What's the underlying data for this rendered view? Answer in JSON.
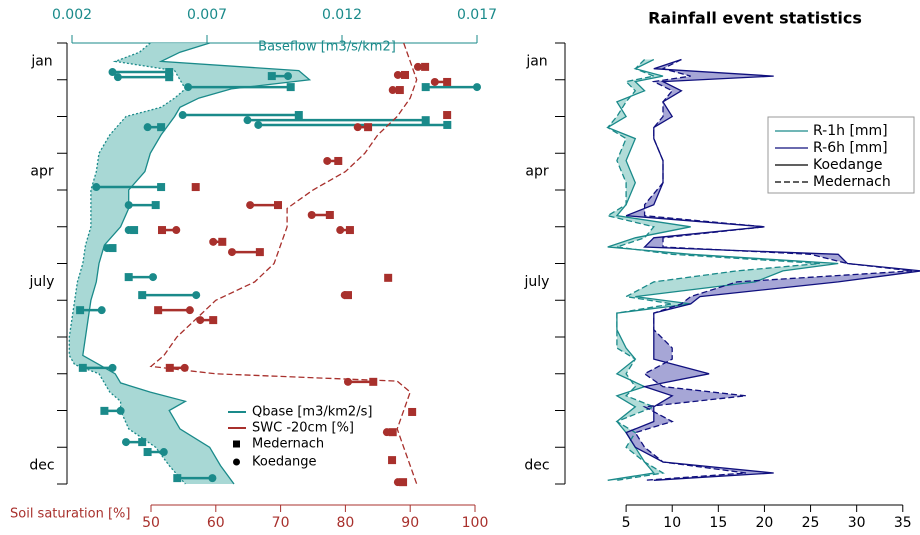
{
  "chart_data": [
    {
      "type": "line",
      "x_label": "Soil saturation [%]",
      "xlim": [
        50,
        100
      ],
      "xticks": [
        50,
        60,
        70,
        80,
        90,
        100
      ],
      "x2_label": "Baseflow [m3/s/km2]",
      "x2lim": [
        0.002,
        0.017
      ],
      "x2ticks": [
        0.002,
        0.007,
        0.012,
        0.017
      ],
      "ylim": [
        0,
        12
      ],
      "yticks": [
        {
          "value": 0.5,
          "label": "jan"
        },
        {
          "value": 3.5,
          "label": "apr"
        },
        {
          "value": 6.5,
          "label": "july"
        },
        {
          "value": 11.5,
          "label": "dec"
        }
      ],
      "yminor": [
        0,
        1,
        2,
        3,
        4,
        5,
        6,
        7,
        8,
        9,
        10,
        11,
        12
      ],
      "stations": [
        "Medernach",
        "Koedange"
      ],
      "markers": [
        "square",
        "circle"
      ],
      "line_styles": [
        "dotted",
        "solid"
      ],
      "series": [
        {
          "name": "Qbase [m3/km2/s]",
          "color": "#1a8a8a",
          "fill": "#9fd4d0",
          "axis": "x2",
          "t": [
            0,
            0.25,
            0.5,
            0.75,
            1,
            1.25,
            1.5,
            1.75,
            2,
            2.5,
            3,
            3.5,
            4,
            4.5,
            5,
            5.5,
            6,
            6.5,
            7,
            7.5,
            8,
            8.5,
            8.75,
            9,
            9.25,
            9.5,
            9.75,
            10,
            10.5,
            11,
            11.5,
            12
          ],
          "values": [
            [
              0.0049,
              0.0045,
              0.0036,
              0.0058,
              0.006,
              0.0062,
              0.0058,
              0.0053,
              0.004,
              0.0034,
              0.003,
              0.0029,
              0.0027,
              0.0027,
              0.0027,
              0.0025,
              0.0024,
              0.0022,
              0.0021,
              0.002,
              0.0019,
              0.0019,
              0.0021,
              0.003,
              0.0032,
              0.0034,
              0.0038,
              0.0038,
              0.0041,
              0.0051,
              0.0056,
              0.0062
            ],
            [
              0.0071,
              0.006,
              0.0053,
              0.0104,
              0.0108,
              0.0079,
              0.0067,
              0.006,
              0.0058,
              0.0053,
              0.0049,
              0.0047,
              0.0041,
              0.0041,
              0.0038,
              0.0032,
              0.003,
              0.0029,
              0.0027,
              0.0026,
              0.0025,
              0.0024,
              0.003,
              0.0036,
              0.0038,
              0.0049,
              0.0062,
              0.0056,
              0.006,
              0.0071,
              0.0075,
              0.008
            ]
          ],
          "events": {
            "t": [
              0.79,
              0.93,
              0.9,
              1.2,
              1.2,
              1.96,
              2.1,
              2.23,
              2.29,
              3.92,
              4.41,
              5.09,
              5.58,
              6.37,
              6.86,
              7.27,
              8.84,
              10.01,
              10.86,
              11.13,
              11.84
            ],
            "values": [
              [
                0.0056,
                0.0056,
                0.0094,
                0.0101,
                0.0151,
                0.0104,
                0.0151,
                0.0159,
                0.0053,
                0.0053,
                0.0051,
                0.0043,
                0.0035,
                0.0041,
                0.0046,
                0.0023,
                0.0024,
                0.0032,
                0.0046,
                0.0048,
                0.0059
              ],
              [
                0.0035,
                0.0037,
                0.01,
                0.0063,
                0.017,
                0.0061,
                0.0085,
                0.0089,
                0.0048,
                0.0029,
                0.0041,
                0.0041,
                0.0033,
                0.005,
                0.0066,
                0.0031,
                0.0035,
                0.0038,
                0.004,
                0.0054,
                0.0072
              ]
            ]
          }
        },
        {
          "name": "SWC -20cm [%]",
          "color": "#a8302c",
          "axis": "x",
          "line_style": "dashed",
          "t": [
            0,
            0.5,
            1,
            1.5,
            2,
            2.5,
            3,
            3.5,
            4,
            4.5,
            5,
            5.5,
            6,
            6.5,
            7,
            7.5,
            8,
            8.5,
            8.8,
            9,
            9.2,
            9.5,
            10,
            10.5,
            11,
            11.5,
            12
          ],
          "values": [
            [
              89,
              90,
              91,
              90,
              88,
              85,
              83,
              80,
              75,
              71,
              71,
              70,
              69,
              66,
              60,
              57,
              54,
              52,
              50,
              60,
              88,
              90,
              89,
              88,
              89,
              90,
              91
            ]
          ],
          "events": {
            "t": [
              0.65,
              0.87,
              1.06,
              1.28,
              1.96,
              2.29,
              3.21,
              3.92,
              4.41,
              4.68,
              5.09,
              5.09,
              5.41,
              5.69,
              6.39,
              6.86,
              7.27,
              7.54,
              8.84,
              9.22,
              10.04,
              10.59,
              11.35,
              11.95
            ],
            "values": [
              [
                92.3,
                89.2,
                95.7,
                88.4,
                95.7,
                83.5,
                78.9,
                56.9,
                69.6,
                77.6,
                80.7,
                51.7,
                61.0,
                66.8,
                86.6,
                80.4,
                51.1,
                59.6,
                52.9,
                84.3,
                90.3,
                87.3,
                87.2,
                88.9
              ],
              [
                91.2,
                88.1,
                93.8,
                87.3,
                null,
                81.9,
                77.2,
                null,
                65.3,
                74.8,
                79.2,
                53.9,
                59.6,
                62.5,
                null,
                79.9,
                56.0,
                57.6,
                55.2,
                80.4,
                null,
                86.4,
                null,
                88.1
              ]
            ]
          }
        }
      ]
    },
    {
      "type": "line",
      "title": "Rainfall event statistics",
      "xlim": [
        0,
        36
      ],
      "xticks": [
        5,
        10,
        15,
        20,
        25,
        30,
        35
      ],
      "ylim": [
        0,
        12
      ],
      "yticks": [
        {
          "value": 0.5,
          "label": "jan"
        },
        {
          "value": 3.5,
          "label": "apr"
        },
        {
          "value": 6.5,
          "label": "july"
        },
        {
          "value": 11.5,
          "label": "dec"
        }
      ],
      "yminor": [
        0,
        1,
        2,
        3,
        4,
        5,
        6,
        7,
        8,
        9,
        10,
        11,
        12
      ],
      "stations": [
        "Koedange",
        "Medernach"
      ],
      "line_styles": [
        "solid",
        "dashed"
      ],
      "t": [
        0.45,
        0.7,
        0.9,
        1.05,
        1.3,
        1.6,
        2.0,
        2.3,
        2.6,
        3.2,
        3.8,
        4.4,
        4.7,
        5.0,
        5.3,
        5.55,
        5.75,
        6.0,
        6.2,
        6.5,
        6.9,
        7.1,
        7.35,
        7.8,
        8.3,
        8.6,
        9.0,
        9.35,
        9.6,
        9.9,
        10.3,
        10.6,
        11.0,
        11.4,
        11.7,
        11.9
      ],
      "series": [
        {
          "name": "R-1h [mm]",
          "color": "#1a8a8a",
          "fill": "#a8d8d4",
          "values": [
            [
              8,
              6,
              9,
              6,
              7,
              4,
              5,
              3,
              6,
              5,
              6,
              5,
              4,
              12,
              6,
              3,
              12,
              28,
              22,
              19,
              6,
              12,
              4,
              4,
              5,
              6,
              4,
              7,
              4,
              6,
              4,
              5,
              6,
              7,
              8,
              3
            ],
            [
              7,
              6,
              8,
              5,
              6,
              5,
              4,
              3,
              5,
              4,
              5,
              5,
              3,
              8,
              7,
              4,
              10,
              26,
              17,
              8,
              5,
              10,
              4,
              4,
              4,
              6,
              5,
              6,
              5,
              8,
              4,
              6,
              5,
              7,
              9,
              4
            ]
          ]
        },
        {
          "name": "R-6h [mm]",
          "color": "#10107e",
          "fill": "#9c9cd2",
          "values": [
            [
              11,
              8,
              21,
              9,
              11,
              9,
              10,
              8,
              8,
              9,
              9,
              8,
              5,
              20,
              8,
              7,
              28,
              29,
              37,
              28,
              13,
              12,
              8,
              8,
              8,
              8,
              14,
              7,
              10,
              8,
              8,
              5,
              6,
              9,
              21,
              8
            ],
            [
              11,
              9,
              12,
              8,
              10,
              9,
              9,
              8,
              8,
              9,
              9,
              7,
              7,
              20,
              9,
              9,
              25,
              29,
              36,
              17,
              12,
              11,
              8,
              8,
              10,
              10,
              7,
              9,
              18,
              7,
              10,
              6,
              7,
              9,
              18,
              7
            ]
          ]
        }
      ]
    }
  ]
}
